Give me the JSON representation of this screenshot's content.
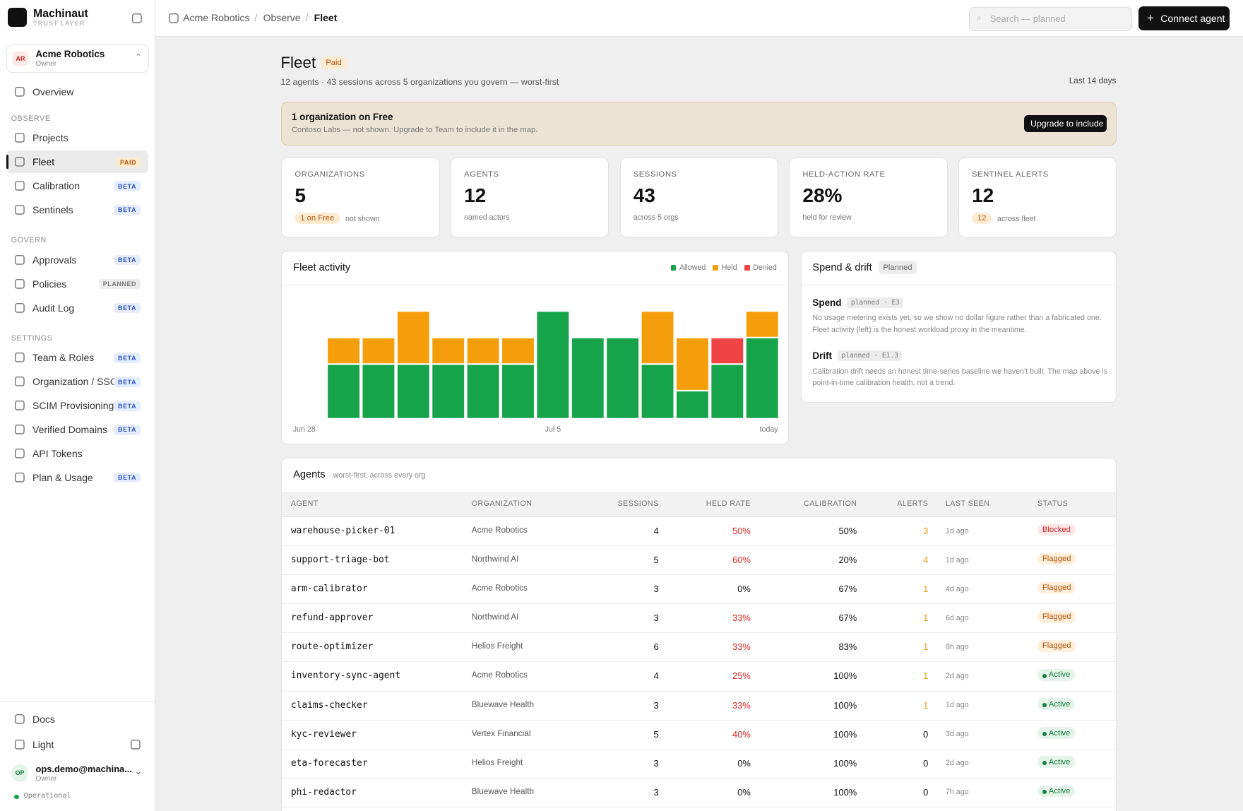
{
  "sidebar": {
    "brand": {
      "name": "Machinaut",
      "tagline": "TRUST LAYER"
    },
    "org": {
      "initials": "AR",
      "name": "Acme Robotics",
      "role": "Owner"
    },
    "nav": [
      {
        "label": "Overview"
      }
    ],
    "sections": [
      {
        "title": "OBSERVE",
        "items": [
          {
            "label": "Projects"
          },
          {
            "label": "Fleet",
            "badge": "PAID"
          },
          {
            "label": "Calibration",
            "badge": "BETA"
          },
          {
            "label": "Sentinels",
            "badge": "BETA"
          }
        ]
      },
      {
        "title": "GOVERN",
        "items": [
          {
            "label": "Approvals",
            "badge": "BETA"
          },
          {
            "label": "Policies",
            "badge": "PLANNED"
          },
          {
            "label": "Audit Log",
            "badge": "BETA"
          }
        ]
      },
      {
        "title": "SETTINGS",
        "items": [
          {
            "label": "Team & Roles",
            "badge": "BETA"
          },
          {
            "label": "Organization / SSO",
            "badge": "BETA"
          },
          {
            "label": "SCIM Provisioning",
            "badge": "BETA"
          },
          {
            "label": "Verified Domains",
            "badge": "BETA"
          },
          {
            "label": "API Tokens"
          },
          {
            "label": "Plan & Usage",
            "badge": "BETA"
          }
        ]
      }
    ],
    "badge_styles": {
      "PAID": {
        "color": "#b45309",
        "bg": "#fdebd2"
      },
      "BETA": {
        "color": "#2f56c8",
        "bg": "#e6ecfb"
      },
      "PLANNED": {
        "color": "#777777",
        "bg": "#ececec"
      }
    },
    "footer": {
      "docs": "Docs",
      "theme": "Light",
      "user": {
        "initials": "OP",
        "email": "ops.demo@machina...",
        "role": "Owner"
      },
      "status": "Operational"
    }
  },
  "topbar": {
    "breadcrumbs": [
      "Acme Robotics",
      "Observe",
      "Fleet"
    ],
    "search_placeholder": "Search — planned",
    "button": "Connect agent"
  },
  "header": {
    "title": "Fleet",
    "badge": "Paid",
    "subtitle": "12 agents · 43 sessions across 5 organizations you govern — worst-first",
    "range": "Last 14 days"
  },
  "banner": {
    "title": "1 organization on Free",
    "text": "Contoso Labs — not shown. Upgrade to Team to include it in the map.",
    "button": "Upgrade to include"
  },
  "stats": [
    {
      "label": "ORGANIZATIONS",
      "value": "5",
      "badge": "1 on Free",
      "note": "not shown"
    },
    {
      "label": "AGENTS",
      "value": "12",
      "note": "named actors"
    },
    {
      "label": "SESSIONS",
      "value": "43",
      "note": "across 5 orgs"
    },
    {
      "label": "HELD-ACTION RATE",
      "value": "28%",
      "note": "held for review"
    },
    {
      "label": "SENTINEL ALERTS",
      "value": "12",
      "badge": "12",
      "note": "across fleet"
    }
  ],
  "chart_data": {
    "type": "stacked_bar",
    "title": "Fleet activity",
    "categories": [
      "Jun 28",
      null,
      null,
      null,
      null,
      null,
      null,
      "Jul 5",
      null,
      null,
      null,
      null,
      null,
      "today"
    ],
    "series": [
      {
        "name": "Allowed",
        "color": "#16a34a",
        "values": [
          0,
          2,
          2,
          2,
          2,
          2,
          2,
          4,
          3,
          3,
          2,
          1,
          2,
          3
        ]
      },
      {
        "name": "Held",
        "color": "#f59e0b",
        "values": [
          0,
          1,
          1,
          2,
          1,
          1,
          1,
          0,
          0,
          0,
          2,
          2,
          0,
          1
        ]
      },
      {
        "name": "Denied",
        "color": "#ef4444",
        "values": [
          0,
          0,
          0,
          0,
          0,
          0,
          0,
          0,
          0,
          0,
          0,
          0,
          1,
          0
        ]
      }
    ]
  },
  "spend": {
    "title": "Spend & drift",
    "badge": "Planned",
    "items": [
      {
        "title": "Spend",
        "tag": "planned · E3",
        "text": [
          "No usage metering exists yet, so we show no dollar figure rather than a fabricated one.",
          "Fleet activity (left) is the honest workload proxy in the meantime."
        ]
      },
      {
        "title": "Drift",
        "tag": "planned · E1.3",
        "text": [
          "Calibration drift needs an honest time-series baseline we haven't built. The map above is",
          "point-in-time calibration health, not a trend."
        ]
      }
    ]
  },
  "table": {
    "title": "Agents",
    "subtitle": "· worst-first, across every org",
    "columns": [
      "AGENT",
      "ORGANIZATION",
      "SESSIONS",
      "HELD RATE",
      "CALIBRATION",
      "ALERTS",
      "LAST SEEN",
      "STATUS"
    ],
    "status_styles": {
      "Blocked": {
        "color": "#c62828",
        "bg": "#fde7e7"
      },
      "Flagged": {
        "color": "#b45309",
        "bg": "#fdefdb"
      },
      "Active": {
        "color": "#15803d",
        "bg": "#e5f4e9",
        "dot": true
      }
    },
    "rows": [
      [
        "warehouse-picker-01",
        "Acme Robotics",
        "4",
        "50%",
        "50%",
        "3",
        "1d ago",
        "Blocked"
      ],
      [
        "support-triage-bot",
        "Northwind AI",
        "5",
        "60%",
        "20%",
        "4",
        "1d ago",
        "Flagged"
      ],
      [
        "arm-calibrator",
        "Acme Robotics",
        "3",
        "0%",
        "67%",
        "1",
        "4d ago",
        "Flagged"
      ],
      [
        "refund-approver",
        "Northwind AI",
        "3",
        "33%",
        "67%",
        "1",
        "6d ago",
        "Flagged"
      ],
      [
        "route-optimizer",
        "Helios Freight",
        "6",
        "33%",
        "83%",
        "1",
        "8h ago",
        "Flagged"
      ],
      [
        "inventory-sync-agent",
        "Acme Robotics",
        "4",
        "25%",
        "100%",
        "1",
        "2d ago",
        "Active"
      ],
      [
        "claims-checker",
        "Bluewave Health",
        "3",
        "33%",
        "100%",
        "1",
        "1d ago",
        "Active"
      ],
      [
        "kyc-reviewer",
        "Vertex Financial",
        "5",
        "40%",
        "100%",
        "0",
        "3d ago",
        "Active"
      ],
      [
        "eta-forecaster",
        "Helios Freight",
        "3",
        "0%",
        "100%",
        "0",
        "2d ago",
        "Active"
      ],
      [
        "phi-redactor",
        "Bluewave Health",
        "3",
        "0%",
        "100%",
        "0",
        "7h ago",
        "Active"
      ]
    ]
  }
}
